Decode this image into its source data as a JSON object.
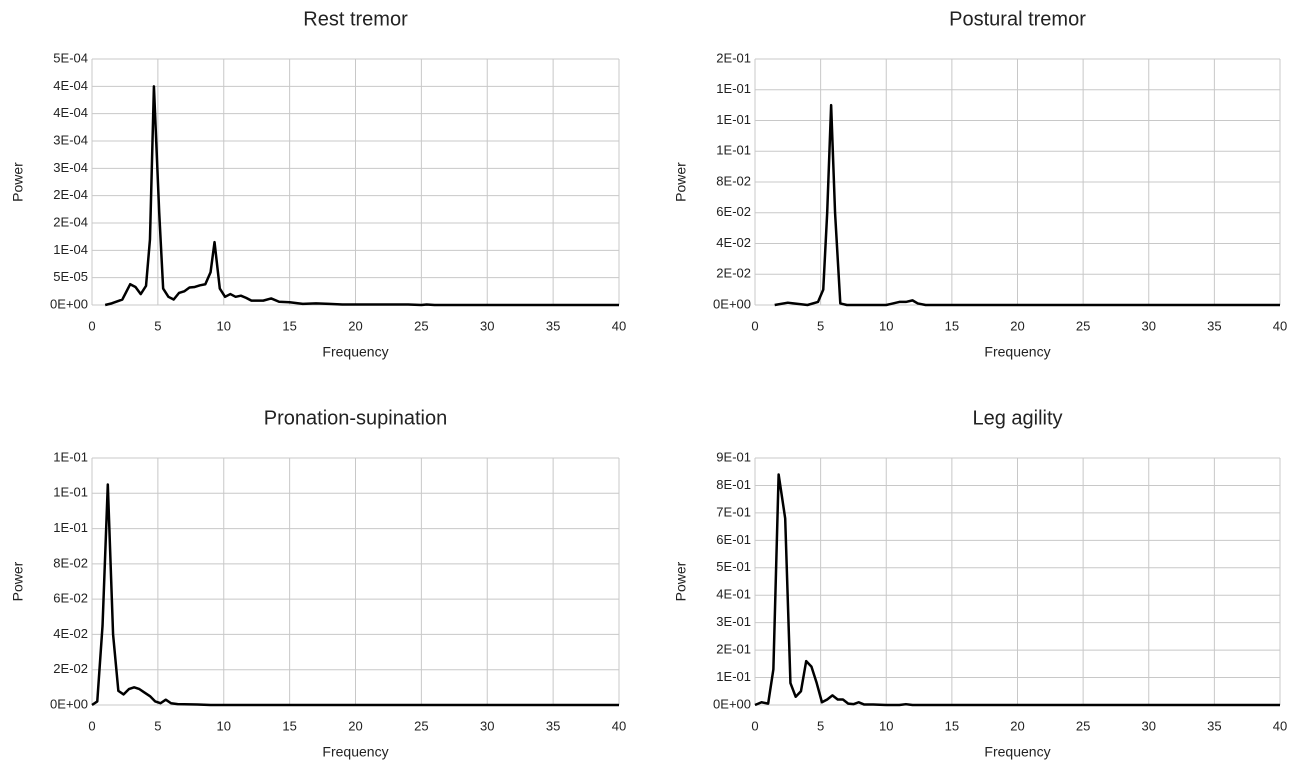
{
  "chart_data": [
    {
      "type": "line",
      "title": "Rest tremor",
      "xlabel": "Frequency",
      "ylabel": "Power",
      "grid": true,
      "xlim": [
        0,
        40
      ],
      "xticks": [
        0,
        5,
        10,
        15,
        20,
        25,
        30,
        35,
        40
      ],
      "ylim": [
        0,
        0.00045
      ],
      "yticks": [
        {
          "value": 0,
          "label": "0E+00"
        },
        {
          "value": 5e-05,
          "label": "5E-05"
        },
        {
          "value": 0.0001,
          "label": "1E-04"
        },
        {
          "value": 0.00015,
          "label": "2E-04"
        },
        {
          "value": 0.0002,
          "label": "2E-04"
        },
        {
          "value": 0.00025,
          "label": "3E-04"
        },
        {
          "value": 0.0003,
          "label": "3E-04"
        },
        {
          "value": 0.00035,
          "label": "4E-04"
        },
        {
          "value": 0.0004,
          "label": "4E-04"
        },
        {
          "value": 0.00045,
          "label": "5E-04"
        }
      ],
      "series": [
        {
          "name": "Power",
          "color": "#000000",
          "x": [
            1,
            1.5,
            2.3,
            2.9,
            3.3,
            3.7,
            4.1,
            4.4,
            4.7,
            5.1,
            5.4,
            5.8,
            6.2,
            6.6,
            7,
            7.4,
            7.8,
            8.2,
            8.6,
            9,
            9.3,
            9.7,
            10.1,
            10.5,
            10.9,
            11.3,
            11.7,
            12.1,
            13,
            13.6,
            14.2,
            15,
            16,
            17,
            18,
            19,
            20,
            24,
            25,
            25.4,
            26,
            40
          ],
          "values": [
            0,
            3e-06,
            1e-05,
            3.8e-05,
            3.3e-05,
            2e-05,
            3.5e-05,
            0.00012,
            0.0004,
            0.00017,
            3e-05,
            1.5e-05,
            1e-05,
            2.2e-05,
            2.5e-05,
            3.2e-05,
            3.3e-05,
            3.6e-05,
            3.8e-05,
            6e-05,
            0.000115,
            3e-05,
            1.5e-05,
            2e-05,
            1.5e-05,
            1.7e-05,
            1.3e-05,
            8e-06,
            8e-06,
            1.2e-05,
            6e-06,
            5e-06,
            2e-06,
            3e-06,
            2e-06,
            1e-06,
            1e-06,
            1e-06,
            0,
            1e-06,
            0,
            0
          ]
        }
      ]
    },
    {
      "type": "line",
      "title": "Postural tremor",
      "xlabel": "Frequency",
      "ylabel": "Power",
      "grid": true,
      "xlim": [
        0,
        40
      ],
      "xticks": [
        0,
        5,
        10,
        15,
        20,
        25,
        30,
        35,
        40
      ],
      "ylim": [
        0,
        0.16
      ],
      "yticks": [
        {
          "value": 0,
          "label": "0E+00"
        },
        {
          "value": 0.02,
          "label": "2E-02"
        },
        {
          "value": 0.04,
          "label": "4E-02"
        },
        {
          "value": 0.06,
          "label": "6E-02"
        },
        {
          "value": 0.08,
          "label": "8E-02"
        },
        {
          "value": 0.1,
          "label": "1E-01"
        },
        {
          "value": 0.12,
          "label": "1E-01"
        },
        {
          "value": 0.14,
          "label": "1E-01"
        },
        {
          "value": 0.16,
          "label": "2E-01"
        }
      ],
      "series": [
        {
          "name": "Power",
          "color": "#000000",
          "x": [
            1.5,
            2.5,
            3,
            4,
            4.8,
            5.2,
            5.5,
            5.8,
            6.1,
            6.5,
            7,
            10,
            11,
            11.5,
            12,
            12.4,
            13,
            40
          ],
          "values": [
            0,
            0.0015,
            0.001,
            0,
            0.002,
            0.01,
            0.06,
            0.13,
            0.06,
            0.001,
            0,
            0,
            0.002,
            0.002,
            0.003,
            0.001,
            0,
            0
          ]
        }
      ]
    },
    {
      "type": "line",
      "title": "Pronation-supination",
      "xlabel": "Frequency",
      "ylabel": "Power",
      "grid": true,
      "xlim": [
        0,
        40
      ],
      "xticks": [
        0,
        5,
        10,
        15,
        20,
        25,
        30,
        35,
        40
      ],
      "ylim": [
        0,
        0.14
      ],
      "yticks": [
        {
          "value": 0,
          "label": "0E+00"
        },
        {
          "value": 0.02,
          "label": "2E-02"
        },
        {
          "value": 0.04,
          "label": "4E-02"
        },
        {
          "value": 0.06,
          "label": "6E-02"
        },
        {
          "value": 0.08,
          "label": "8E-02"
        },
        {
          "value": 0.1,
          "label": "1E-01"
        },
        {
          "value": 0.12,
          "label": "1E-01"
        },
        {
          "value": 0.14,
          "label": "1E-01"
        }
      ],
      "series": [
        {
          "name": "Power",
          "color": "#000000",
          "x": [
            0,
            0.4,
            0.8,
            1.2,
            1.6,
            2,
            2.4,
            2.8,
            3.2,
            3.6,
            4,
            4.4,
            4.8,
            5.2,
            5.6,
            6,
            6.5,
            8,
            9,
            40
          ],
          "values": [
            0,
            0.002,
            0.045,
            0.125,
            0.04,
            0.008,
            0.006,
            0.009,
            0.01,
            0.009,
            0.007,
            0.005,
            0.002,
            0.001,
            0.003,
            0.001,
            0.0005,
            0.0003,
            0,
            0
          ]
        }
      ]
    },
    {
      "type": "line",
      "title": "Leg agility",
      "xlabel": "Frequency",
      "ylabel": "Power",
      "grid": true,
      "xlim": [
        0,
        40
      ],
      "xticks": [
        0,
        5,
        10,
        15,
        20,
        25,
        30,
        35,
        40
      ],
      "ylim": [
        0,
        0.9
      ],
      "yticks": [
        {
          "value": 0,
          "label": "0E+00"
        },
        {
          "value": 0.1,
          "label": "1E-01"
        },
        {
          "value": 0.2,
          "label": "2E-01"
        },
        {
          "value": 0.3,
          "label": "3E-01"
        },
        {
          "value": 0.4,
          "label": "4E-01"
        },
        {
          "value": 0.5,
          "label": "5E-01"
        },
        {
          "value": 0.6,
          "label": "6E-01"
        },
        {
          "value": 0.7,
          "label": "7E-01"
        },
        {
          "value": 0.8,
          "label": "8E-01"
        },
        {
          "value": 0.9,
          "label": "9E-01"
        }
      ],
      "series": [
        {
          "name": "Power",
          "color": "#000000",
          "x": [
            0,
            0.5,
            1,
            1.4,
            1.8,
            2.3,
            2.7,
            3.1,
            3.5,
            3.9,
            4.3,
            4.7,
            5.1,
            5.5,
            5.9,
            6.3,
            6.7,
            7.1,
            7.5,
            7.9,
            8.3,
            9,
            10,
            11,
            11.5,
            12,
            40
          ],
          "values": [
            0,
            0.01,
            0.005,
            0.13,
            0.84,
            0.68,
            0.08,
            0.03,
            0.05,
            0.16,
            0.14,
            0.08,
            0.01,
            0.02,
            0.035,
            0.02,
            0.02,
            0.005,
            0.003,
            0.01,
            0.002,
            0.002,
            0,
            0,
            0.003,
            0,
            0
          ]
        }
      ]
    }
  ]
}
